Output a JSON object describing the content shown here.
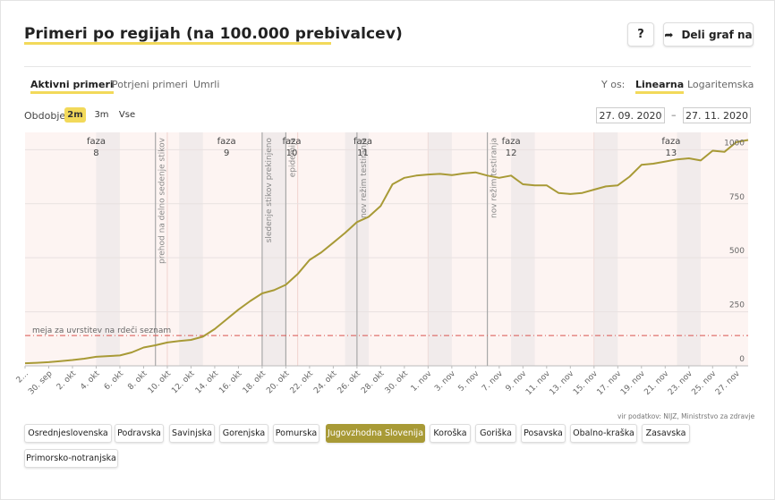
{
  "header": {
    "title": "Primeri po regijah (na 100.000 prebivalcev)",
    "help_label": "?",
    "share_label": "Deli graf na",
    "share_icon": "share-arrow-icon"
  },
  "tabs": [
    {
      "label": "Aktivni primeri",
      "active": true
    },
    {
      "label": "Potrjeni primeri",
      "active": false
    },
    {
      "label": "Umrli",
      "active": false
    }
  ],
  "y_axis_toggle": {
    "label": "Y os:",
    "options": [
      {
        "label": "Linearna",
        "active": true
      },
      {
        "label": "Logaritemska",
        "active": false
      }
    ]
  },
  "period": {
    "label": "Obdobje",
    "options": [
      {
        "label": "2m",
        "active": true
      },
      {
        "label": "3m",
        "active": false
      },
      {
        "label": "Vse",
        "active": false
      }
    ]
  },
  "date_range": {
    "from": "27. 09. 2020",
    "separator": "–",
    "to": "27. 11. 2020"
  },
  "source": "vir podatkov: NIJZ, Ministrstvo za zdravje",
  "regions": [
    {
      "label": "Osrednjeslovenska",
      "active": false
    },
    {
      "label": "Podravska",
      "active": false
    },
    {
      "label": "Savinjska",
      "active": false
    },
    {
      "label": "Gorenjska",
      "active": false
    },
    {
      "label": "Pomurska",
      "active": false
    },
    {
      "label": "Jugovzhodna Slovenija",
      "active": true
    },
    {
      "label": "Koroška",
      "active": false
    },
    {
      "label": "Goriška",
      "active": false
    },
    {
      "label": "Posavska",
      "active": false
    },
    {
      "label": "Obalno-kraška",
      "active": false
    },
    {
      "label": "Zasavska",
      "active": false
    },
    {
      "label": "Primorsko-notranjska",
      "active": false
    }
  ],
  "chart_data": {
    "type": "line",
    "x_start": "2020-09-27",
    "x_end": "2020-11-27",
    "ylim": [
      0,
      1080
    ],
    "yticks": [
      0,
      250,
      500,
      750,
      1000
    ],
    "xtick_labels": [
      "2…",
      "30. sep",
      "2. okt",
      "4. okt",
      "6. okt",
      "8. okt",
      "10. okt",
      "12. okt",
      "14. okt",
      "16. okt",
      "18. okt",
      "20. okt",
      "22. okt",
      "24. okt",
      "26. okt",
      "28. okt",
      "30. okt",
      "1. nov",
      "3. nov",
      "5. nov",
      "7. nov",
      "9. nov",
      "11. nov",
      "13. nov",
      "15. nov",
      "17. nov",
      "19. nov",
      "21. nov",
      "23. nov",
      "25. nov",
      "27. nov"
    ],
    "series": [
      {
        "name": "Jugovzhodna Slovenija",
        "color": "#a89a36",
        "dates": [
          "2020-09-27",
          "2020-09-28",
          "2020-09-29",
          "2020-09-30",
          "2020-10-01",
          "2020-10-02",
          "2020-10-03",
          "2020-10-04",
          "2020-10-05",
          "2020-10-06",
          "2020-10-07",
          "2020-10-08",
          "2020-10-09",
          "2020-10-10",
          "2020-10-11",
          "2020-10-12",
          "2020-10-13",
          "2020-10-14",
          "2020-10-15",
          "2020-10-16",
          "2020-10-17",
          "2020-10-18",
          "2020-10-19",
          "2020-10-20",
          "2020-10-21",
          "2020-10-22",
          "2020-10-23",
          "2020-10-24",
          "2020-10-25",
          "2020-10-26",
          "2020-10-27",
          "2020-10-28",
          "2020-10-29",
          "2020-10-30",
          "2020-10-31",
          "2020-11-01",
          "2020-11-02",
          "2020-11-03",
          "2020-11-04",
          "2020-11-05",
          "2020-11-06",
          "2020-11-07",
          "2020-11-08",
          "2020-11-09",
          "2020-11-10",
          "2020-11-11",
          "2020-11-12",
          "2020-11-13",
          "2020-11-14",
          "2020-11-15",
          "2020-11-16",
          "2020-11-17",
          "2020-11-18",
          "2020-11-19",
          "2020-11-20",
          "2020-11-21",
          "2020-11-22",
          "2020-11-23",
          "2020-11-24",
          "2020-11-25",
          "2020-11-26",
          "2020-11-27"
        ],
        "values": [
          12,
          14,
          17,
          22,
          27,
          33,
          42,
          45,
          48,
          62,
          85,
          95,
          108,
          115,
          120,
          135,
          170,
          215,
          260,
          300,
          335,
          350,
          375,
          425,
          490,
          525,
          570,
          615,
          665,
          690,
          740,
          840,
          870,
          880,
          885,
          888,
          882,
          890,
          895,
          880,
          870,
          880,
          840,
          835,
          835,
          800,
          795,
          800,
          815,
          830,
          835,
          875,
          930,
          935,
          945,
          955,
          960,
          950,
          995,
          990,
          1035,
          1045
        ]
      }
    ],
    "threshold": {
      "label": "meja za uvrstitev na rdeči seznam",
      "value": 140
    },
    "phases": [
      {
        "label": "faza",
        "number": "8",
        "start": "2020-09-27",
        "end": "2020-10-09"
      },
      {
        "label": "faza",
        "number": "9",
        "start": "2020-10-09",
        "end": "2020-10-19"
      },
      {
        "label": "faza",
        "number": "10",
        "start": "2020-10-19",
        "end": "2020-10-20"
      },
      {
        "label": "faza",
        "number": "11",
        "start": "2020-10-20",
        "end": "2020-10-31"
      },
      {
        "label": "faza",
        "number": "12",
        "start": "2020-10-31",
        "end": "2020-11-14"
      },
      {
        "label": "faza",
        "number": "13",
        "start": "2020-11-14",
        "end": "2020-11-28"
      }
    ],
    "events": [
      {
        "label": "prehod na delno sedenje stikov",
        "date": "2020-10-08"
      },
      {
        "label": "sledenje stikov prekinjeno",
        "date": "2020-10-17"
      },
      {
        "label": "epidemija",
        "date": "2020-10-19"
      },
      {
        "label": "nov režim testiranja",
        "date": "2020-10-25"
      },
      {
        "label": "nov režim testiranja",
        "date": "2020-11-05"
      }
    ]
  }
}
